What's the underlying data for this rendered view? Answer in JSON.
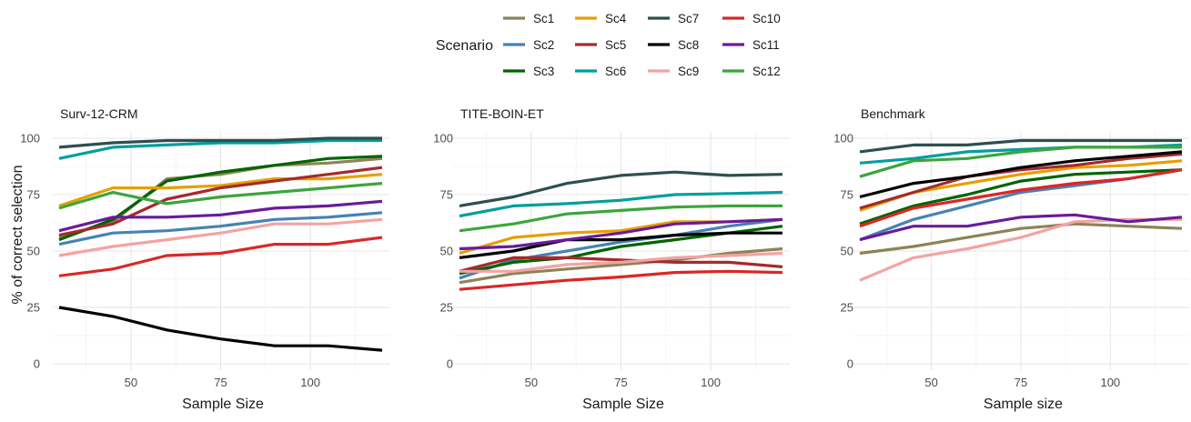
{
  "legend": {
    "title": "Scenario",
    "items": [
      {
        "name": "Sc1",
        "color": "#8B8457"
      },
      {
        "name": "Sc2",
        "color": "#4682B4"
      },
      {
        "name": "Sc3",
        "color": "#006400"
      },
      {
        "name": "Sc4",
        "color": "#E69F00"
      },
      {
        "name": "Sc5",
        "color": "#A52A2A"
      },
      {
        "name": "Sc6",
        "color": "#009E9E"
      },
      {
        "name": "Sc7",
        "color": "#2F4F4F"
      },
      {
        "name": "Sc8",
        "color": "#000000"
      },
      {
        "name": "Sc9",
        "color": "#F4A3A3"
      },
      {
        "name": "Sc10",
        "color": "#DC2626"
      },
      {
        "name": "Sc11",
        "color": "#6A1B9A"
      },
      {
        "name": "Sc12",
        "color": "#3DA53D"
      }
    ]
  },
  "ylabel": "% of correct selection",
  "chart_data": [
    {
      "type": "line",
      "title": "Surv-12-CRM",
      "xlabel": "Sample Size",
      "ylabel": "% of correct selection",
      "xlim": [
        30,
        120
      ],
      "ylim": [
        0,
        100
      ],
      "x_ticks": [
        50,
        75,
        100
      ],
      "y_ticks": [
        0,
        25,
        50,
        75,
        100
      ],
      "grid": true,
      "x": [
        30,
        45,
        60,
        75,
        90,
        105,
        120
      ],
      "series": [
        {
          "name": "Sc1",
          "values": [
            56,
            63,
            82,
            84,
            88,
            89,
            91
          ]
        },
        {
          "name": "Sc2",
          "values": [
            53,
            58,
            59,
            61,
            64,
            65,
            67
          ]
        },
        {
          "name": "Sc3",
          "values": [
            55,
            64,
            81,
            85,
            88,
            91,
            92
          ]
        },
        {
          "name": "Sc4",
          "values": [
            70,
            78,
            78,
            79,
            82,
            82,
            84
          ]
        },
        {
          "name": "Sc5",
          "values": [
            57,
            62,
            73,
            78,
            81,
            84,
            87
          ]
        },
        {
          "name": "Sc6",
          "values": [
            91,
            96,
            97,
            98,
            98,
            99,
            99
          ]
        },
        {
          "name": "Sc7",
          "values": [
            96,
            98,
            99,
            99,
            99,
            100,
            100
          ]
        },
        {
          "name": "Sc8",
          "values": [
            25,
            21,
            15,
            11,
            8,
            8,
            6
          ]
        },
        {
          "name": "Sc9",
          "values": [
            48,
            52,
            55,
            58,
            62,
            62,
            64
          ]
        },
        {
          "name": "Sc10",
          "values": [
            39,
            42,
            48,
            49,
            53,
            53,
            56
          ]
        },
        {
          "name": "Sc11",
          "values": [
            59,
            65,
            65,
            66,
            69,
            70,
            72
          ]
        },
        {
          "name": "Sc12",
          "values": [
            69,
            76,
            71,
            74,
            76,
            78,
            80
          ]
        }
      ]
    },
    {
      "type": "line",
      "title": "TITE-BOIN-ET",
      "xlabel": "Sample Size",
      "ylabel": "% of correct selection",
      "xlim": [
        30,
        120
      ],
      "ylim": [
        0,
        100
      ],
      "x_ticks": [
        50,
        75,
        100
      ],
      "y_ticks": [
        0,
        25,
        50,
        75,
        100
      ],
      "grid": true,
      "x": [
        30,
        45,
        60,
        75,
        90,
        105,
        120
      ],
      "series": [
        {
          "name": "Sc1",
          "values": [
            36,
            40,
            42,
            44,
            46,
            49,
            51
          ]
        },
        {
          "name": "Sc2",
          "values": [
            38,
            46,
            50,
            54,
            57,
            61,
            64
          ]
        },
        {
          "name": "Sc3",
          "values": [
            40,
            45,
            47,
            52,
            55,
            58,
            61
          ]
        },
        {
          "name": "Sc4",
          "values": [
            49,
            56,
            58,
            59,
            63,
            63,
            64
          ]
        },
        {
          "name": "Sc5",
          "values": [
            41,
            47,
            47,
            46,
            45,
            45,
            43
          ]
        },
        {
          "name": "Sc6",
          "values": [
            65.5,
            70,
            71,
            72.5,
            75,
            75.5,
            76
          ]
        },
        {
          "name": "Sc7",
          "values": [
            70,
            74,
            80,
            83.5,
            85,
            83.5,
            84
          ]
        },
        {
          "name": "Sc8",
          "values": [
            47,
            50,
            55,
            55,
            57,
            58,
            58
          ]
        },
        {
          "name": "Sc9",
          "values": [
            41,
            41,
            44,
            45,
            47,
            48,
            49
          ]
        },
        {
          "name": "Sc10",
          "values": [
            33,
            35,
            37,
            38.5,
            40.5,
            41,
            40.5
          ]
        },
        {
          "name": "Sc11",
          "values": [
            51,
            52,
            55,
            58,
            62,
            63,
            64
          ]
        },
        {
          "name": "Sc12",
          "values": [
            59,
            62,
            66.5,
            68,
            69.5,
            70,
            70
          ]
        }
      ]
    },
    {
      "type": "line",
      "title": "Benchmark",
      "xlabel": "Sample size",
      "ylabel": "% of correct selection",
      "xlim": [
        30,
        120
      ],
      "ylim": [
        0,
        100
      ],
      "x_ticks": [
        50,
        75,
        100
      ],
      "y_ticks": [
        0,
        25,
        50,
        75,
        100
      ],
      "grid": true,
      "x": [
        30,
        45,
        60,
        75,
        90,
        105,
        120
      ],
      "series": [
        {
          "name": "Sc1",
          "values": [
            49,
            52,
            56,
            60,
            62,
            61,
            60
          ]
        },
        {
          "name": "Sc2",
          "values": [
            55,
            64,
            70,
            76,
            79,
            82,
            86
          ]
        },
        {
          "name": "Sc3",
          "values": [
            62,
            70,
            75,
            81,
            84,
            85,
            86
          ]
        },
        {
          "name": "Sc4",
          "values": [
            68,
            76,
            80,
            84,
            87,
            88,
            90
          ]
        },
        {
          "name": "Sc5",
          "values": [
            69,
            76,
            83,
            86,
            88,
            91,
            93
          ]
        },
        {
          "name": "Sc6",
          "values": [
            89,
            91,
            94,
            95,
            96,
            96,
            97
          ]
        },
        {
          "name": "Sc7",
          "values": [
            94,
            97,
            97,
            99,
            99,
            99,
            99
          ]
        },
        {
          "name": "Sc8",
          "values": [
            74,
            80,
            83,
            87,
            90,
            92,
            94
          ]
        },
        {
          "name": "Sc9",
          "values": [
            37,
            47,
            51,
            56,
            63,
            64,
            64
          ]
        },
        {
          "name": "Sc10",
          "values": [
            61,
            69,
            73,
            77,
            80,
            82,
            86
          ]
        },
        {
          "name": "Sc11",
          "values": [
            55,
            61,
            61,
            65,
            66,
            63,
            65
          ]
        },
        {
          "name": "Sc12",
          "values": [
            83,
            90,
            91,
            94,
            96,
            96,
            96
          ]
        }
      ]
    }
  ]
}
